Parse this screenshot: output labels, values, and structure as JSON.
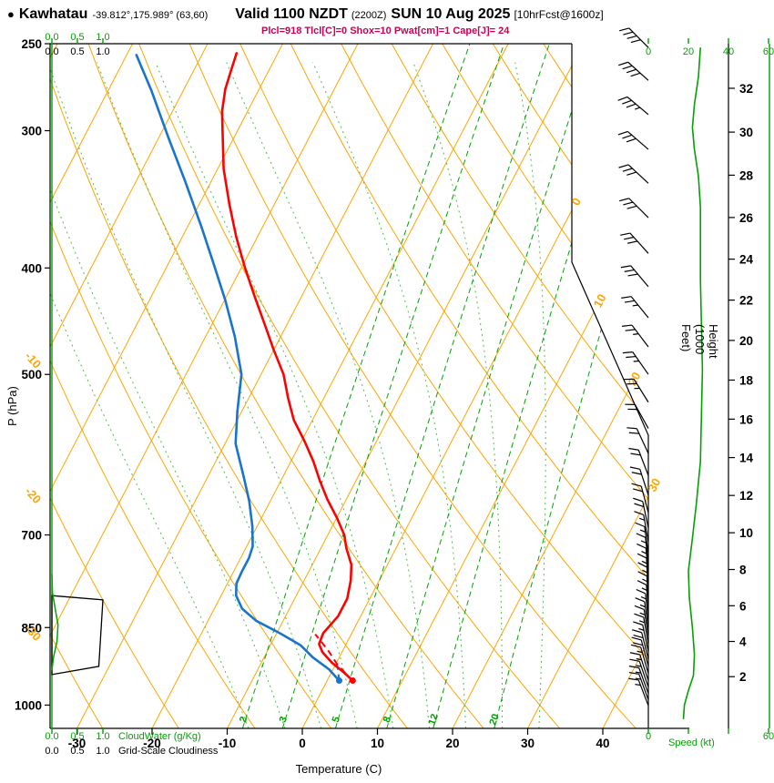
{
  "header": {
    "bullet": "●",
    "station": "Kawhatau",
    "coords_grid": "-39.812°,175.989° (63,60)",
    "valid": "Valid 1100 NZDT",
    "valid_z": "(2200Z)",
    "date": "SUN 10 Aug 2025",
    "fcst": "[10hrFcst@1600z]",
    "params": "Plcl=918 Tlcl[C]=0 Shox=10 Pwat[cm]=1 Cape[J]= 24"
  },
  "axes": {
    "pressure": {
      "title": "P (hPa)",
      "ticks": [
        250,
        300,
        400,
        500,
        700,
        850,
        1000
      ]
    },
    "temperature": {
      "title": "Temperature (C)",
      "ticks": [
        -30,
        -20,
        -10,
        0,
        10,
        20,
        30,
        40
      ]
    },
    "height": {
      "title": "Height (1000 Feet)",
      "ticks": [
        2,
        4,
        6,
        8,
        10,
        12,
        14,
        16,
        18,
        20,
        22,
        24,
        26,
        28,
        30,
        32
      ]
    },
    "speed": {
      "title": "Speed (kt)",
      "ticks": [
        0,
        20,
        40,
        60
      ]
    },
    "cloud_scale": {
      "ticks": [
        "0.0",
        "0.5",
        "1.0"
      ],
      "cloudwater": "CloudWater (g/Kg)",
      "cloudiness": "Grid-Scale Cloudiness"
    }
  },
  "colors": {
    "grid_orange": "#FFA500",
    "green": "#00A300",
    "moist_green": "#55BB55",
    "red": "#FF0000",
    "blue": "#1874CD",
    "params_crimson": "#CC0055",
    "black": "#000000"
  },
  "chart_data": {
    "type": "line",
    "variant": "skew-t-log-p-sounding",
    "title": "Kawhatau sounding valid 1100 NZDT (2200Z) SUN 10 Aug 2025 [10hrFcst@1600z]",
    "pressure_range_hpa": [
      250,
      1050
    ],
    "temperature_range_c_at_surface": [
      -33,
      51
    ],
    "temperature_profile_c": [
      [
        950,
        3.4
      ],
      [
        935,
        1.8
      ],
      [
        915,
        -0.6
      ],
      [
        895,
        -2.6
      ],
      [
        880,
        -3.6
      ],
      [
        860,
        -3.8
      ],
      [
        830,
        -3.0
      ],
      [
        800,
        -3.0
      ],
      [
        770,
        -3.8
      ],
      [
        745,
        -4.8
      ],
      [
        720,
        -6.6
      ],
      [
        700,
        -7.8
      ],
      [
        675,
        -10.0
      ],
      [
        650,
        -12.5
      ],
      [
        625,
        -14.8
      ],
      [
        600,
        -17.0
      ],
      [
        575,
        -19.6
      ],
      [
        550,
        -22.5
      ],
      [
        525,
        -24.8
      ],
      [
        500,
        -27.0
      ],
      [
        475,
        -30.0
      ],
      [
        450,
        -33.0
      ],
      [
        425,
        -36.2
      ],
      [
        400,
        -39.5
      ],
      [
        375,
        -42.8
      ],
      [
        350,
        -46.0
      ],
      [
        325,
        -49.2
      ],
      [
        300,
        -52.0
      ],
      [
        288,
        -53.4
      ],
      [
        275,
        -54.5
      ],
      [
        265,
        -55.0
      ],
      [
        255,
        -55.5
      ]
    ],
    "dewpoint_profile_c": [
      [
        950,
        1.6
      ],
      [
        928,
        -0.5
      ],
      [
        905,
        -3.5
      ],
      [
        882,
        -6.0
      ],
      [
        860,
        -9.6
      ],
      [
        838,
        -13.6
      ],
      [
        817,
        -16.3
      ],
      [
        795,
        -18.0
      ],
      [
        775,
        -18.8
      ],
      [
        755,
        -18.9
      ],
      [
        735,
        -18.9
      ],
      [
        717,
        -19.2
      ],
      [
        688,
        -20.6
      ],
      [
        652,
        -22.8
      ],
      [
        620,
        -25.2
      ],
      [
        578,
        -28.6
      ],
      [
        540,
        -30.6
      ],
      [
        500,
        -32.6
      ],
      [
        462,
        -36.1
      ],
      [
        428,
        -39.9
      ],
      [
        397,
        -43.9
      ],
      [
        368,
        -48.0
      ],
      [
        334,
        -53.4
      ],
      [
        304,
        -58.8
      ],
      [
        276,
        -64.2
      ],
      [
        256,
        -68.7
      ]
    ],
    "parcel_temperature_c": [
      [
        950,
        3.4
      ],
      [
        918,
        0.2
      ],
      [
        890,
        -2.1
      ],
      [
        862,
        -4.8
      ]
    ],
    "parcel_dewpoint_c": [
      [
        950,
        1.6
      ],
      [
        918,
        0.2
      ]
    ],
    "wind_speed_profile_kt": [
      [
        252,
        26
      ],
      [
        268,
        25
      ],
      [
        284,
        23
      ],
      [
        298,
        22
      ],
      [
        312,
        23
      ],
      [
        330,
        25
      ],
      [
        352,
        26
      ],
      [
        378,
        26
      ],
      [
        410,
        26
      ],
      [
        450,
        26.5
      ],
      [
        495,
        27
      ],
      [
        545,
        26.5
      ],
      [
        600,
        26
      ],
      [
        655,
        24
      ],
      [
        705,
        22
      ],
      [
        755,
        20
      ],
      [
        800,
        20.5
      ],
      [
        850,
        22
      ],
      [
        900,
        23
      ],
      [
        940,
        22.5
      ],
      [
        970,
        20
      ],
      [
        1000,
        18
      ],
      [
        1030,
        17.5
      ]
    ],
    "wind_barbs_p_kt_dir": [
      [
        252,
        40,
        315
      ],
      [
        270,
        38,
        312
      ],
      [
        290,
        35,
        310
      ],
      [
        312,
        32,
        311
      ],
      [
        335,
        30,
        313
      ],
      [
        360,
        28,
        315
      ],
      [
        388,
        30,
        318
      ],
      [
        416,
        28,
        320
      ],
      [
        444,
        26,
        321
      ],
      [
        472,
        25,
        323
      ],
      [
        500,
        25,
        325
      ],
      [
        530,
        23,
        328
      ],
      [
        560,
        22,
        331
      ],
      [
        590,
        21,
        335
      ],
      [
        618,
        20,
        339
      ],
      [
        644,
        19,
        342
      ],
      [
        668,
        18,
        345
      ],
      [
        690,
        18,
        348
      ],
      [
        710,
        17,
        350
      ],
      [
        728,
        17,
        352
      ],
      [
        745,
        16,
        354
      ],
      [
        762,
        16,
        355
      ],
      [
        778,
        15,
        356
      ],
      [
        793,
        15,
        357
      ],
      [
        808,
        15,
        357
      ],
      [
        823,
        15,
        356
      ],
      [
        838,
        15,
        354
      ],
      [
        852,
        16,
        352
      ],
      [
        866,
        16,
        351
      ],
      [
        880,
        17,
        350
      ],
      [
        894,
        17,
        348
      ],
      [
        908,
        18,
        346
      ],
      [
        922,
        18,
        345
      ],
      [
        936,
        17,
        344
      ],
      [
        950,
        17,
        342
      ],
      [
        963,
        16,
        341
      ],
      [
        976,
        15,
        340
      ],
      [
        989,
        15,
        340
      ],
      [
        1001,
        14,
        339
      ]
    ],
    "cloud_water_gkg": [
      [
        760,
        0
      ],
      [
        790,
        0.01
      ],
      [
        815,
        0.06
      ],
      [
        845,
        0.12
      ],
      [
        875,
        0.1
      ],
      [
        905,
        0.03
      ],
      [
        930,
        0
      ]
    ],
    "grid_scale_cloudiness": [
      [
        795,
        0
      ],
      [
        802,
        1.0
      ],
      [
        922,
        0.92
      ],
      [
        938,
        0
      ]
    ],
    "grid": {
      "isotherms_c": {
        "min": -100,
        "max": 50,
        "step": 10
      },
      "dry_adiabats_c": {
        "min": -40,
        "max": 140,
        "step": 10
      },
      "moist_adiabats_c": [
        -10,
        -5,
        0,
        5,
        10,
        15,
        20,
        25,
        30
      ],
      "mixing_ratio_gkg": [
        2,
        3,
        5,
        8,
        12,
        20
      ],
      "isotherm_labels_c": [
        0,
        10,
        20,
        30
      ],
      "dry_adiabat_labels_c": [
        -10,
        -20,
        -30
      ],
      "mixing_ratio_labels": [
        2,
        3,
        5,
        8,
        12,
        20
      ]
    }
  }
}
